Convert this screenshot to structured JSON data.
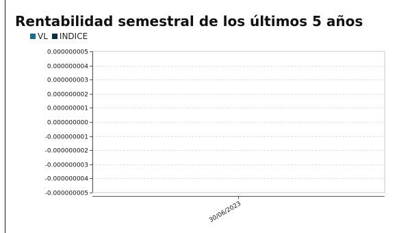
{
  "chart_data": {
    "type": "bar",
    "title": "Rentabilidad semestral de los últimos 5 años",
    "xlabel": "",
    "ylabel": "",
    "categories": [
      "30/06/2023"
    ],
    "series": [
      {
        "name": "VL",
        "values": [
          0
        ],
        "color": "#1f6d8c"
      },
      {
        "name": "INDICE",
        "values": [
          0
        ],
        "color": "#0e2f3d"
      }
    ],
    "ylim": [
      -5e-09,
      5e-09
    ],
    "y_ticks": [
      "0.000000005",
      "0.000000004",
      "0.000000003",
      "0.000000002",
      "0.000000001",
      "0.000000000",
      "-0.000000001",
      "-0.000000002",
      "-0.000000003",
      "-0.000000004",
      "-0.000000005"
    ],
    "grid": true,
    "legend_position": "top-left"
  },
  "colors": {
    "grid": "#e0e0e0",
    "plot_border": "#c8c8c8",
    "axis": "#555555"
  }
}
